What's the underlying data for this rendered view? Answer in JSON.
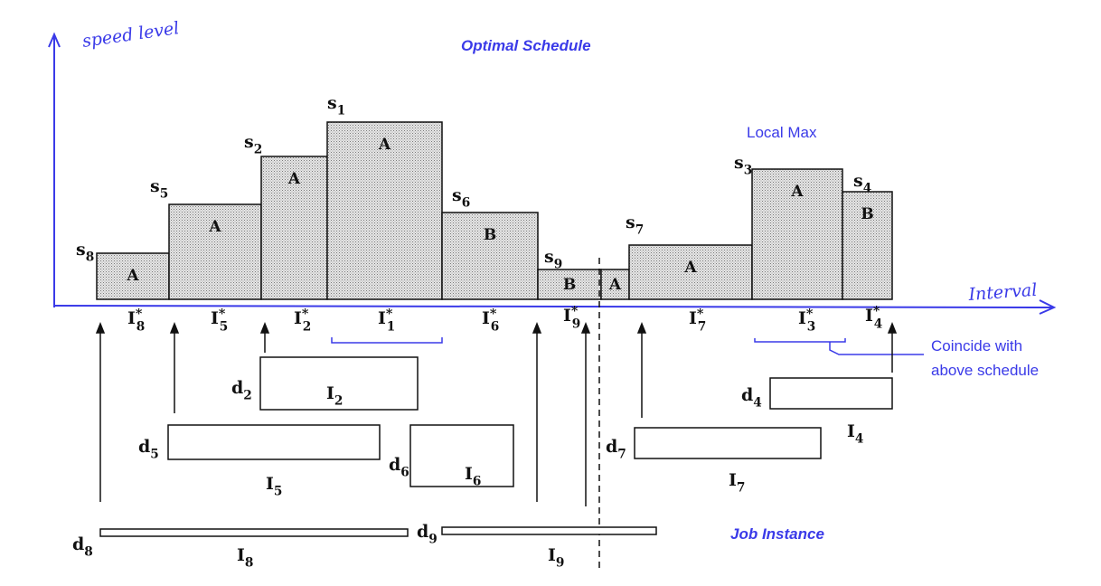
{
  "annotations": {
    "y_axis_label": "speed level",
    "x_axis_label": "Interval",
    "title": "Optimal Schedule",
    "local_max": "Local Max",
    "coincide_line1": "Coincide with",
    "coincide_line2": "above schedule",
    "job_instance": "Job Instance"
  },
  "colors": {
    "annotation_blue": "#3a3ae8",
    "block_fill": "#d9d9d9",
    "ink": "#111111"
  },
  "blocks": [
    {
      "speed": "s",
      "speed_sub": "8",
      "job": "A",
      "interval": "I",
      "interval_sub": "8"
    },
    {
      "speed": "s",
      "speed_sub": "5",
      "job": "A",
      "interval": "I",
      "interval_sub": "5"
    },
    {
      "speed": "s",
      "speed_sub": "2",
      "job": "A",
      "interval": "I",
      "interval_sub": "2"
    },
    {
      "speed": "s",
      "speed_sub": "1",
      "job": "A",
      "interval": "I",
      "interval_sub": "1"
    },
    {
      "speed": "s",
      "speed_sub": "6",
      "job": "B",
      "interval": "I",
      "interval_sub": "6"
    },
    {
      "speed": "s",
      "speed_sub": "9",
      "job": "B",
      "interval": "I",
      "interval_sub": "9"
    },
    {
      "speed": "",
      "speed_sub": "",
      "job": "A",
      "interval": "",
      "interval_sub": ""
    },
    {
      "speed": "s",
      "speed_sub": "7",
      "job": "A",
      "interval": "I",
      "interval_sub": "7"
    },
    {
      "speed": "s",
      "speed_sub": "3",
      "job": "A",
      "interval": "I",
      "interval_sub": "3"
    },
    {
      "speed": "s",
      "speed_sub": "4",
      "job": "B",
      "interval": "I",
      "interval_sub": "4"
    }
  ],
  "jobs": [
    {
      "deadline": "d",
      "deadline_sub": "2",
      "interval": "I",
      "interval_sub": "2"
    },
    {
      "deadline": "d",
      "deadline_sub": "5",
      "interval": "I",
      "interval_sub": "5"
    },
    {
      "deadline": "d",
      "deadline_sub": "6",
      "interval": "I",
      "interval_sub": "6"
    },
    {
      "deadline": "d",
      "deadline_sub": "7",
      "interval": "I",
      "interval_sub": "7"
    },
    {
      "deadline": "d",
      "deadline_sub": "4",
      "interval": "I",
      "interval_sub": "4"
    },
    {
      "deadline": "d",
      "deadline_sub": "8",
      "interval": "I",
      "interval_sub": "8"
    },
    {
      "deadline": "d",
      "deadline_sub": "9",
      "interval": "I",
      "interval_sub": "9"
    }
  ],
  "star": "*"
}
